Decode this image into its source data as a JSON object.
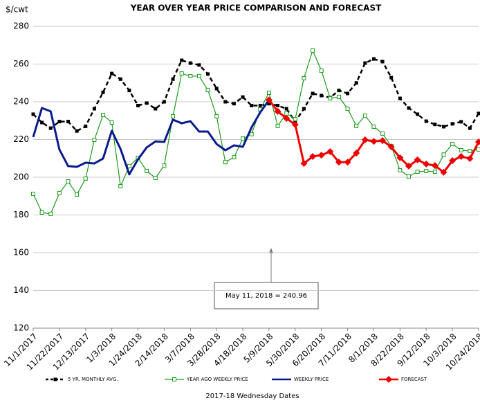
{
  "chart_data": {
    "type": "line",
    "title": "YEAR OVER YEAR PRICE COMPARISON AND FORECAST",
    "y_label": "$/cwt",
    "x_label": "2017-18 Wednesday  Dates",
    "categories": [
      "11/1/2017",
      null,
      null,
      "11/22/2017",
      null,
      null,
      "12/13/2017",
      null,
      null,
      "1/3/2018",
      null,
      null,
      "1/24/2018",
      null,
      null,
      "2/14/2018",
      null,
      null,
      "3/7/2018",
      null,
      null,
      "3/28/2018",
      null,
      null,
      "4/18/2018",
      null,
      null,
      "5/9/2018",
      null,
      null,
      "5/30/2018",
      null,
      null,
      "6/20/2018",
      null,
      null,
      "7/11/2018",
      null,
      null,
      "8/1/2018",
      null,
      null,
      "8/22/2018",
      null,
      null,
      "9/12/2018",
      null,
      null,
      "10/3/2018",
      null,
      null,
      "10/24/2018"
    ],
    "series": [
      {
        "name": "5 YR. MONTHLY AVG.",
        "color": "#000000",
        "dash": true,
        "marker": "square",
        "width": 2.5,
        "values": [
          233.4,
          229,
          226,
          229.5,
          229.5,
          224.5,
          227,
          236.3,
          245,
          255,
          252,
          246,
          238,
          239.3,
          236.3,
          240,
          252,
          262,
          260.5,
          259.5,
          254.7,
          247,
          240,
          239,
          242.5,
          238,
          238,
          239,
          238,
          236.3,
          229.5,
          236.3,
          244.4,
          243.3,
          242.2,
          246,
          244.4,
          250,
          260.5,
          262.7,
          261.3,
          252.8,
          241.8,
          236.7,
          233.4,
          229.7,
          228,
          226.8,
          228.3,
          229.4,
          226,
          233.8
        ]
      },
      {
        "name": "YEAR AGO WEEKLY PRICE",
        "color": "#1a9a1a",
        "dash": false,
        "marker": "open-square",
        "width": 1.2,
        "values": [
          191.2,
          181.3,
          180.6,
          191.6,
          197.8,
          190.8,
          199.3,
          219.8,
          233,
          229,
          195.2,
          205.9,
          210.3,
          203.3,
          199.6,
          206.2,
          232.3,
          255,
          253.6,
          253.6,
          246.2,
          232.3,
          208,
          210.6,
          220.5,
          222.8,
          236,
          244.8,
          227.2,
          233.8,
          230.8,
          252.5,
          267.2,
          256.5,
          241.8,
          242.6,
          236.3,
          227.2,
          232.6,
          226.8,
          223.1,
          216.5,
          203.7,
          200.4,
          202.9,
          203.3,
          202.9,
          212,
          217.6,
          214.3,
          213.9,
          214.7
        ]
      },
      {
        "name": "WEEKLY PRICE",
        "color": "#0a1a8c",
        "dash": false,
        "marker": "none",
        "width": 3,
        "values": [
          221.3,
          236.7,
          234.9,
          214.7,
          205.9,
          205.5,
          207.7,
          207.3,
          209.9,
          224.6,
          215,
          201.5,
          209.5,
          215.8,
          219,
          218.7,
          230.5,
          228.6,
          229.7,
          224.2,
          224.2,
          217.6,
          214.3,
          216.9,
          216.1,
          226.4,
          234.4,
          240.96,
          null,
          null,
          null,
          null,
          null,
          null,
          null,
          null,
          null,
          null,
          null,
          null,
          null,
          null,
          null,
          null,
          null,
          null,
          null,
          null,
          null,
          null,
          null,
          null
        ]
      },
      {
        "name": "FORECAST",
        "color": "#ee0000",
        "dash": false,
        "marker": "diamond",
        "width": 3,
        "values": [
          null,
          null,
          null,
          null,
          null,
          null,
          null,
          null,
          null,
          null,
          null,
          null,
          null,
          null,
          null,
          null,
          null,
          null,
          null,
          null,
          null,
          null,
          null,
          null,
          null,
          null,
          null,
          240.96,
          234.9,
          231.2,
          227.9,
          207.3,
          211,
          211.7,
          213.6,
          208,
          208,
          212.8,
          219.8,
          219,
          219.4,
          216.1,
          210.3,
          205.9,
          209.2,
          207,
          206.2,
          202.6,
          208.8,
          211,
          209.9,
          218.7
        ]
      }
    ],
    "ylim": [
      120,
      280
    ],
    "yticks": [
      120,
      140,
      160,
      180,
      200,
      220,
      240,
      260,
      280
    ],
    "grid": true,
    "legend": "bottom",
    "annotation": {
      "text": "May 11, 2018  = 240.96"
    }
  }
}
